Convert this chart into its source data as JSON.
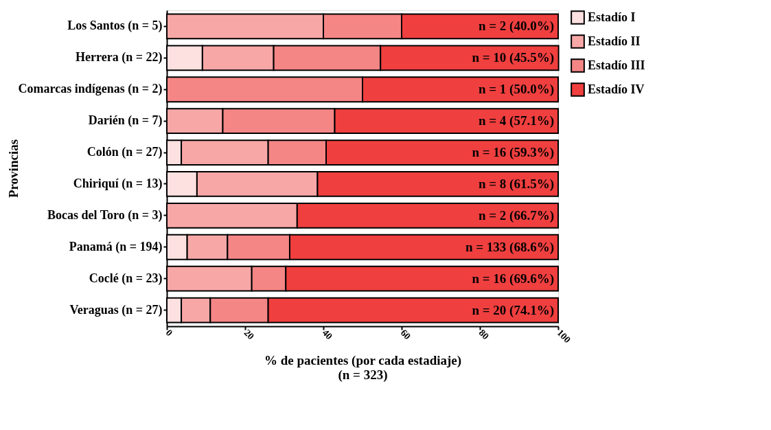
{
  "chart_data": {
    "type": "bar",
    "orientation": "horizontal",
    "stacked": true,
    "categories": [
      "Los Santos (n = 5)",
      "Herrera (n = 22)",
      "Comarcas indígenas (n = 2)",
      "Darién (n = 7)",
      "Colón (n = 27)",
      "Chiriquí (n = 13)",
      "Bocas del Toro (n = 3)",
      "Panamá (n = 194)",
      "Coclé (n = 23)",
      "Veraguas (n = 27)"
    ],
    "series": [
      {
        "name": "Estadío I",
        "color": "#fde0e0",
        "values": [
          null,
          9.1,
          null,
          null,
          3.7,
          7.7,
          null,
          5.2,
          null,
          3.7
        ]
      },
      {
        "name": "Estadío II",
        "color": "#f8a7a7",
        "values": [
          40.0,
          18.2,
          null,
          14.3,
          22.2,
          30.8,
          33.3,
          10.3,
          21.7,
          7.4
        ]
      },
      {
        "name": "Estadío III",
        "color": "#f58686",
        "values": [
          20.0,
          27.3,
          50.0,
          28.6,
          14.8,
          null,
          null,
          15.9,
          8.7,
          14.8
        ]
      },
      {
        "name": "Estadío IV",
        "color": "#f03f3f",
        "values": [
          40.0,
          45.5,
          50.0,
          57.1,
          59.3,
          61.5,
          66.7,
          68.6,
          69.6,
          74.1
        ],
        "value_labels": [
          "n = 2 (40.0%)",
          "n = 10 (45.5%)",
          "n = 1 (50.0%)",
          "n = 4 (57.1%)",
          "n = 16 (59.3%)",
          "n = 8 (61.5%)",
          "n = 2 (66.7%)",
          "n = 133 (68.6%)",
          "n = 16 (69.6%)",
          "n = 20 (74.1%)"
        ]
      }
    ],
    "xlim": [
      0,
      100
    ],
    "xticks": [
      0,
      20,
      40,
      60,
      80,
      100
    ],
    "xlabel": "% de pacientes (por cada estadiaje)",
    "ylabel": "Provincias",
    "annotations": [
      "(n = 323)"
    ],
    "legend": "top right",
    "grid": false
  }
}
